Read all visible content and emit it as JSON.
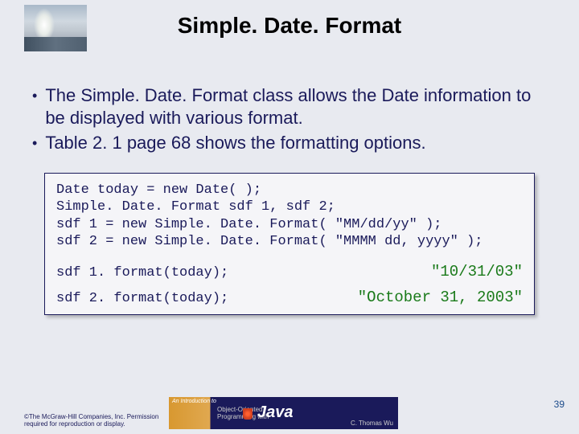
{
  "title": "Simple. Date. Format",
  "bullets": [
    "The Simple. Date. Format class allows the Date information to be displayed with various format.",
    "Table 2. 1 page 68 shows the formatting options."
  ],
  "code": {
    "lines": [
      "Date today = new Date( );",
      "Simple. Date. Format sdf 1, sdf 2;",
      "sdf 1 = new Simple. Date. Format( \"MM/dd/yy\" );",
      "sdf 2 = new Simple. Date. Format( \"MMMM dd, yyyy\" );"
    ],
    "results": [
      {
        "call": "sdf 1. format(today);",
        "output": "\"10/31/03\""
      },
      {
        "call": "sdf 2. format(today);",
        "output": "\"October 31, 2003\""
      }
    ]
  },
  "footer": {
    "copyright": "©The McGraw-Hill Companies, Inc. Permission required for reproduction or display.",
    "book_intro": "An Introduction to",
    "book_subtitle": "Object-Oriented",
    "book_prog": "Programming with",
    "book_lang": "Java",
    "book_author": "C. Thomas Wu"
  },
  "page_number": "39",
  "colors": {
    "background": "#e8eaf0",
    "text_primary": "#1a1a5a",
    "code_result": "#1a7a1a",
    "box_border": "#1a1a5a"
  }
}
